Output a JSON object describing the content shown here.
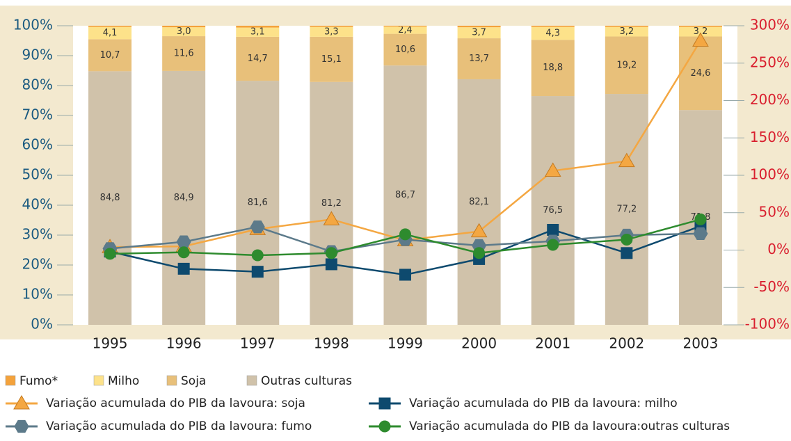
{
  "chart_data": {
    "type": "bar-line",
    "categories": [
      "1995",
      "1996",
      "1997",
      "1998",
      "1999",
      "2000",
      "2001",
      "2002",
      "2003"
    ],
    "ylim": [
      0,
      100
    ],
    "yticks": [
      {
        "value": 0,
        "label": "0%"
      },
      {
        "value": 10,
        "label": "10%"
      },
      {
        "value": 20,
        "label": "20%"
      },
      {
        "value": 30,
        "label": "30%"
      },
      {
        "value": 40,
        "label": "40%"
      },
      {
        "value": 50,
        "label": "50%"
      },
      {
        "value": 60,
        "label": "60%"
      },
      {
        "value": 70,
        "label": "70%"
      },
      {
        "value": 80,
        "label": "80%"
      },
      {
        "value": 90,
        "label": "90%"
      },
      {
        "value": 100,
        "label": "100%"
      }
    ],
    "y2lim": [
      -100,
      300
    ],
    "y2ticks": [
      {
        "value": -100,
        "label": "-100%"
      },
      {
        "value": -50,
        "label": "-50%"
      },
      {
        "value": 0,
        "label": "0%"
      },
      {
        "value": 50,
        "label": "50%"
      },
      {
        "value": 100,
        "label": "100%"
      },
      {
        "value": 150,
        "label": "150%"
      },
      {
        "value": 200,
        "label": "200%"
      },
      {
        "value": 250,
        "label": "250%"
      },
      {
        "value": 300,
        "label": "300%"
      }
    ],
    "series": [
      {
        "name": "Fumo*",
        "type": "bar",
        "color": "#f4a23b",
        "values": [
          0.4,
          0.5,
          0.6,
          0.4,
          0.3,
          0.5,
          0.4,
          0.4,
          0.4
        ]
      },
      {
        "name": "Milho",
        "type": "bar",
        "color": "#fde28a",
        "values": [
          4.1,
          3.0,
          3.1,
          3.3,
          2.4,
          3.7,
          4.3,
          3.2,
          3.2
        ],
        "value_labels": [
          "4,1",
          "3,0",
          "3,1",
          "3,3",
          "2,4",
          "3,7",
          "4,3",
          "3,2",
          "3,2"
        ]
      },
      {
        "name": "Soja",
        "type": "bar",
        "color": "#e8c07a",
        "values": [
          10.7,
          11.6,
          14.7,
          15.1,
          10.6,
          13.7,
          18.8,
          19.2,
          24.6
        ],
        "value_labels": [
          "10,7",
          "11,6",
          "14,7",
          "15,1",
          "10,6",
          "13,7",
          "18,8",
          "19,2",
          "24,6"
        ]
      },
      {
        "name": "Outras culturas",
        "type": "bar",
        "color": "#d0c2aa",
        "values": [
          84.8,
          84.9,
          81.6,
          81.2,
          86.7,
          82.1,
          76.5,
          77.2,
          71.8
        ],
        "value_labels": [
          "84,8",
          "84,9",
          "81,6",
          "81,2",
          "86,7",
          "82,1",
          "76,5",
          "77,2",
          "71,8"
        ]
      },
      {
        "name": "Variação acumulada do PIB da lavoura: soja",
        "type": "line",
        "axis": "y2",
        "marker": "triangle",
        "color": "#f4a742",
        "values": [
          4,
          5,
          28,
          41,
          13,
          25,
          106,
          119,
          280
        ]
      },
      {
        "name": "Variação acumulada do PIB da lavoura: milho",
        "type": "line",
        "axis": "y2",
        "marker": "square",
        "color": "#0e4a6e",
        "values": [
          -2,
          -25,
          -29,
          -19,
          -33,
          -12,
          27,
          -4,
          32
        ]
      },
      {
        "name": "Variação acumulada do PIB da lavoura: fumo",
        "type": "line",
        "axis": "y2",
        "marker": "hexagon",
        "color": "#5c7a8a",
        "values": [
          2,
          11,
          31,
          -2,
          14,
          6,
          12,
          20,
          22
        ]
      },
      {
        "name": "Variação acumulada do PIB da lavoura:outras culturas",
        "type": "line",
        "axis": "y2",
        "marker": "circle",
        "color": "#2e8b2e",
        "values": [
          -5,
          -3,
          -7,
          -4,
          21,
          -4,
          7,
          14,
          41
        ]
      }
    ]
  }
}
